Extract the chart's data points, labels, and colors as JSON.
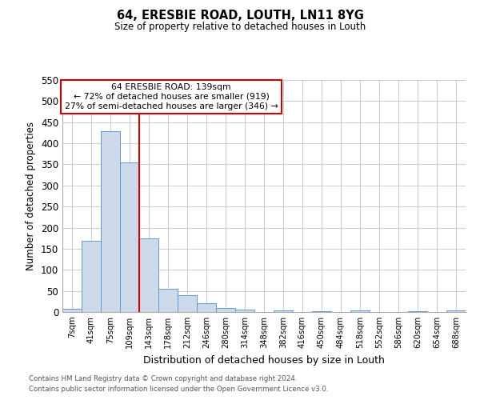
{
  "title": "64, ERESBIE ROAD, LOUTH, LN11 8YG",
  "subtitle": "Size of property relative to detached houses in Louth",
  "xlabel": "Distribution of detached houses by size in Louth",
  "ylabel": "Number of detached properties",
  "bin_labels": [
    "7sqm",
    "41sqm",
    "75sqm",
    "109sqm",
    "143sqm",
    "178sqm",
    "212sqm",
    "246sqm",
    "280sqm",
    "314sqm",
    "348sqm",
    "382sqm",
    "416sqm",
    "450sqm",
    "484sqm",
    "518sqm",
    "552sqm",
    "586sqm",
    "620sqm",
    "654sqm",
    "688sqm"
  ],
  "bar_heights": [
    8,
    168,
    428,
    355,
    175,
    55,
    39,
    21,
    10,
    5,
    0,
    3,
    0,
    2,
    0,
    4,
    0,
    0,
    2,
    0,
    3
  ],
  "bar_color": "#ccd9e8",
  "bar_edge_color": "#6699cc",
  "vline_color": "#cc0000",
  "annotation_title": "64 ERESBIE ROAD: 139sqm",
  "annotation_line1": "← 72% of detached houses are smaller (919)",
  "annotation_line2": "27% of semi-detached houses are larger (346) →",
  "annotation_box_edge": "#cc0000",
  "ylim": [
    0,
    550
  ],
  "yticks": [
    0,
    50,
    100,
    150,
    200,
    250,
    300,
    350,
    400,
    450,
    500,
    550
  ],
  "footnote1": "Contains HM Land Registry data © Crown copyright and database right 2024.",
  "footnote2": "Contains public sector information licensed under the Open Government Licence v3.0.",
  "bg_color": "#ffffff",
  "grid_color": "#c0cfe0"
}
